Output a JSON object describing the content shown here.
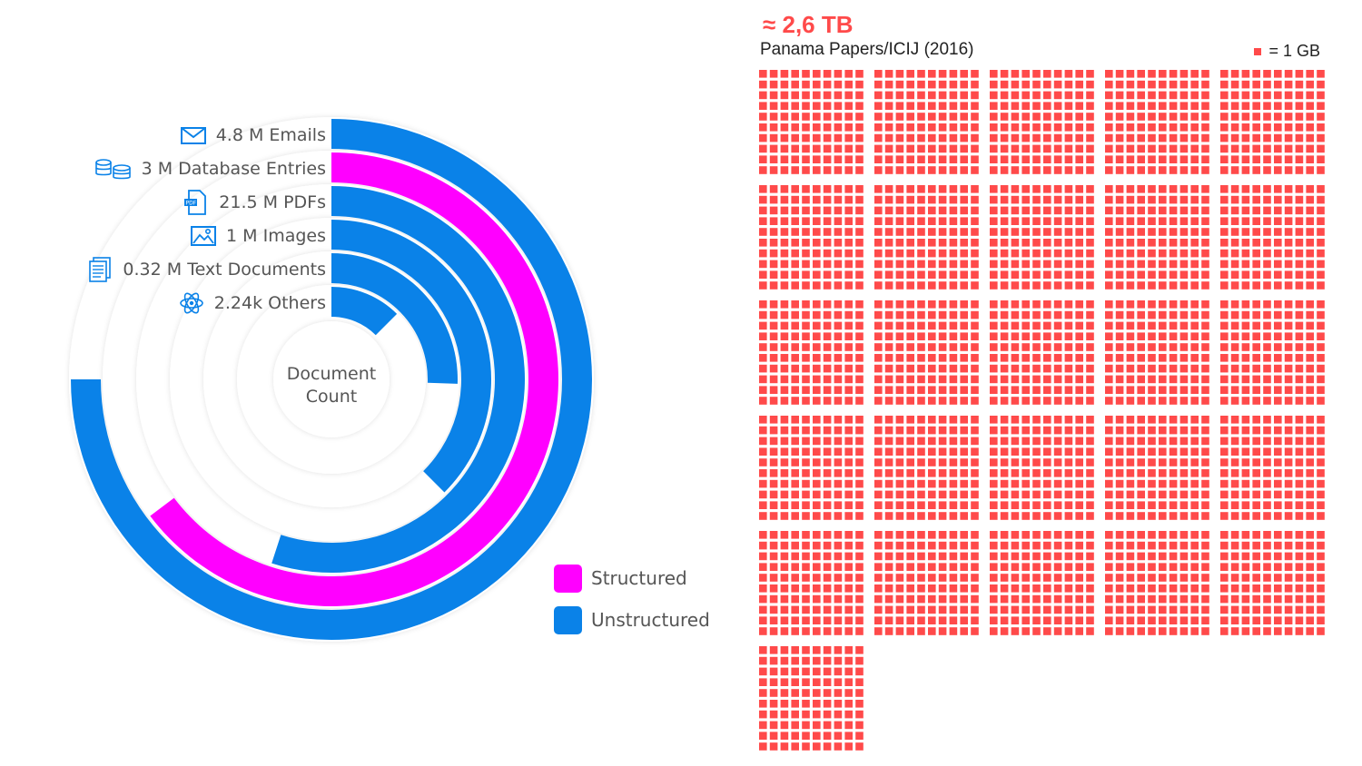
{
  "chart_data": [
    {
      "type": "radial-bar",
      "center_label": [
        "Document",
        "Count"
      ],
      "series": [
        {
          "label": "4.8 M Emails",
          "value_millions": 4.8,
          "icon": "envelope-icon",
          "category": "Unstructured",
          "sweep_degrees": 270
        },
        {
          "label": "3 M Database Entries",
          "value_millions": 3,
          "icon": "database-icon",
          "category": "Structured",
          "sweep_degrees": 233
        },
        {
          "label": "21.5 M PDFs",
          "value_millions": 21.5,
          "icon": "pdf-icon",
          "category": "Unstructured",
          "sweep_degrees": 198
        },
        {
          "label": "1 M Images",
          "value_millions": 1,
          "icon": "image-icon",
          "category": "Unstructured",
          "sweep_degrees": 135
        },
        {
          "label": "0.32 M Text Documents",
          "value_millions": 0.32,
          "icon": "text-document-icon",
          "category": "Unstructured",
          "sweep_degrees": 92
        },
        {
          "label": "2.24k Others",
          "value_millions": 0.00224,
          "icon": "atom-icon",
          "category": "Unstructured",
          "sweep_degrees": 45
        }
      ],
      "legend": [
        {
          "label": "Structured",
          "color": "#ff00ff"
        },
        {
          "label": "Unstructured",
          "color": "#0a82e8"
        }
      ],
      "legend_placement": "bottom-right"
    },
    {
      "type": "waffle",
      "title": "≈ 2,6 TB",
      "subtitle": "Panama Papers/ICIJ (2016)",
      "unit_label": "= 1 GB",
      "color": "#ff4a4a",
      "block_rows": 10,
      "block_cols": 10,
      "full_blocks": 26,
      "total_units": 2600,
      "blocks_per_row": 5
    }
  ],
  "colors": {
    "structured": "#ff00ff",
    "unstructured": "#0a82e8",
    "waffle": "#ff4a4a",
    "track": "#ffffff"
  }
}
